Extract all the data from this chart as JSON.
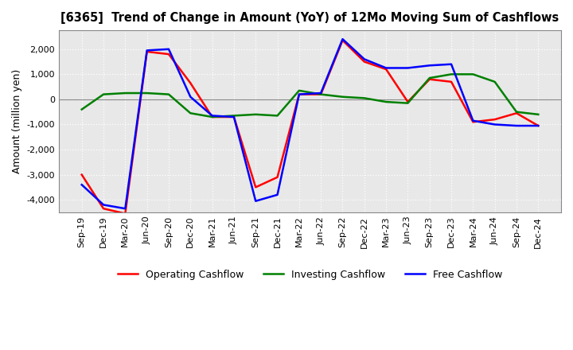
{
  "title": "[6365]  Trend of Change in Amount (YoY) of 12Mo Moving Sum of Cashflows",
  "ylabel": "Amount (million yen)",
  "background_color": "#ffffff",
  "plot_bg_color": "#e8e8e8",
  "grid_color": "#ffffff",
  "x_labels": [
    "Sep-19",
    "Dec-19",
    "Mar-20",
    "Jun-20",
    "Sep-20",
    "Dec-20",
    "Mar-21",
    "Jun-21",
    "Sep-21",
    "Dec-21",
    "Mar-22",
    "Jun-22",
    "Sep-22",
    "Dec-22",
    "Mar-23",
    "Jun-23",
    "Sep-23",
    "Dec-23",
    "Mar-24",
    "Jun-24",
    "Sep-24",
    "Dec-24"
  ],
  "operating": [
    -3000,
    -4350,
    -4550,
    1900,
    1800,
    650,
    -700,
    -700,
    -3500,
    -3100,
    200,
    200,
    2350,
    1500,
    1200,
    -100,
    800,
    700,
    -900,
    -800,
    -550,
    -1050
  ],
  "investing": [
    -400,
    200,
    250,
    250,
    200,
    -550,
    -700,
    -650,
    -600,
    -650,
    350,
    200,
    100,
    50,
    -100,
    -150,
    850,
    1000,
    1000,
    700,
    -500,
    -600
  ],
  "free_cashflow": [
    -3400,
    -4200,
    -4350,
    1950,
    2000,
    100,
    -650,
    -700,
    -4050,
    -3800,
    200,
    250,
    2400,
    1600,
    1250,
    1250,
    1350,
    1400,
    -850,
    -1000,
    -1050,
    -1050
  ],
  "operating_color": "#ff0000",
  "investing_color": "#008000",
  "free_cashflow_color": "#0000ff",
  "line_width": 1.8,
  "ylim": [
    -4500,
    2750
  ],
  "yticks": [
    -4000,
    -3000,
    -2000,
    -1000,
    0,
    1000,
    2000
  ],
  "legend_labels": [
    "Operating Cashflow",
    "Investing Cashflow",
    "Free Cashflow"
  ]
}
